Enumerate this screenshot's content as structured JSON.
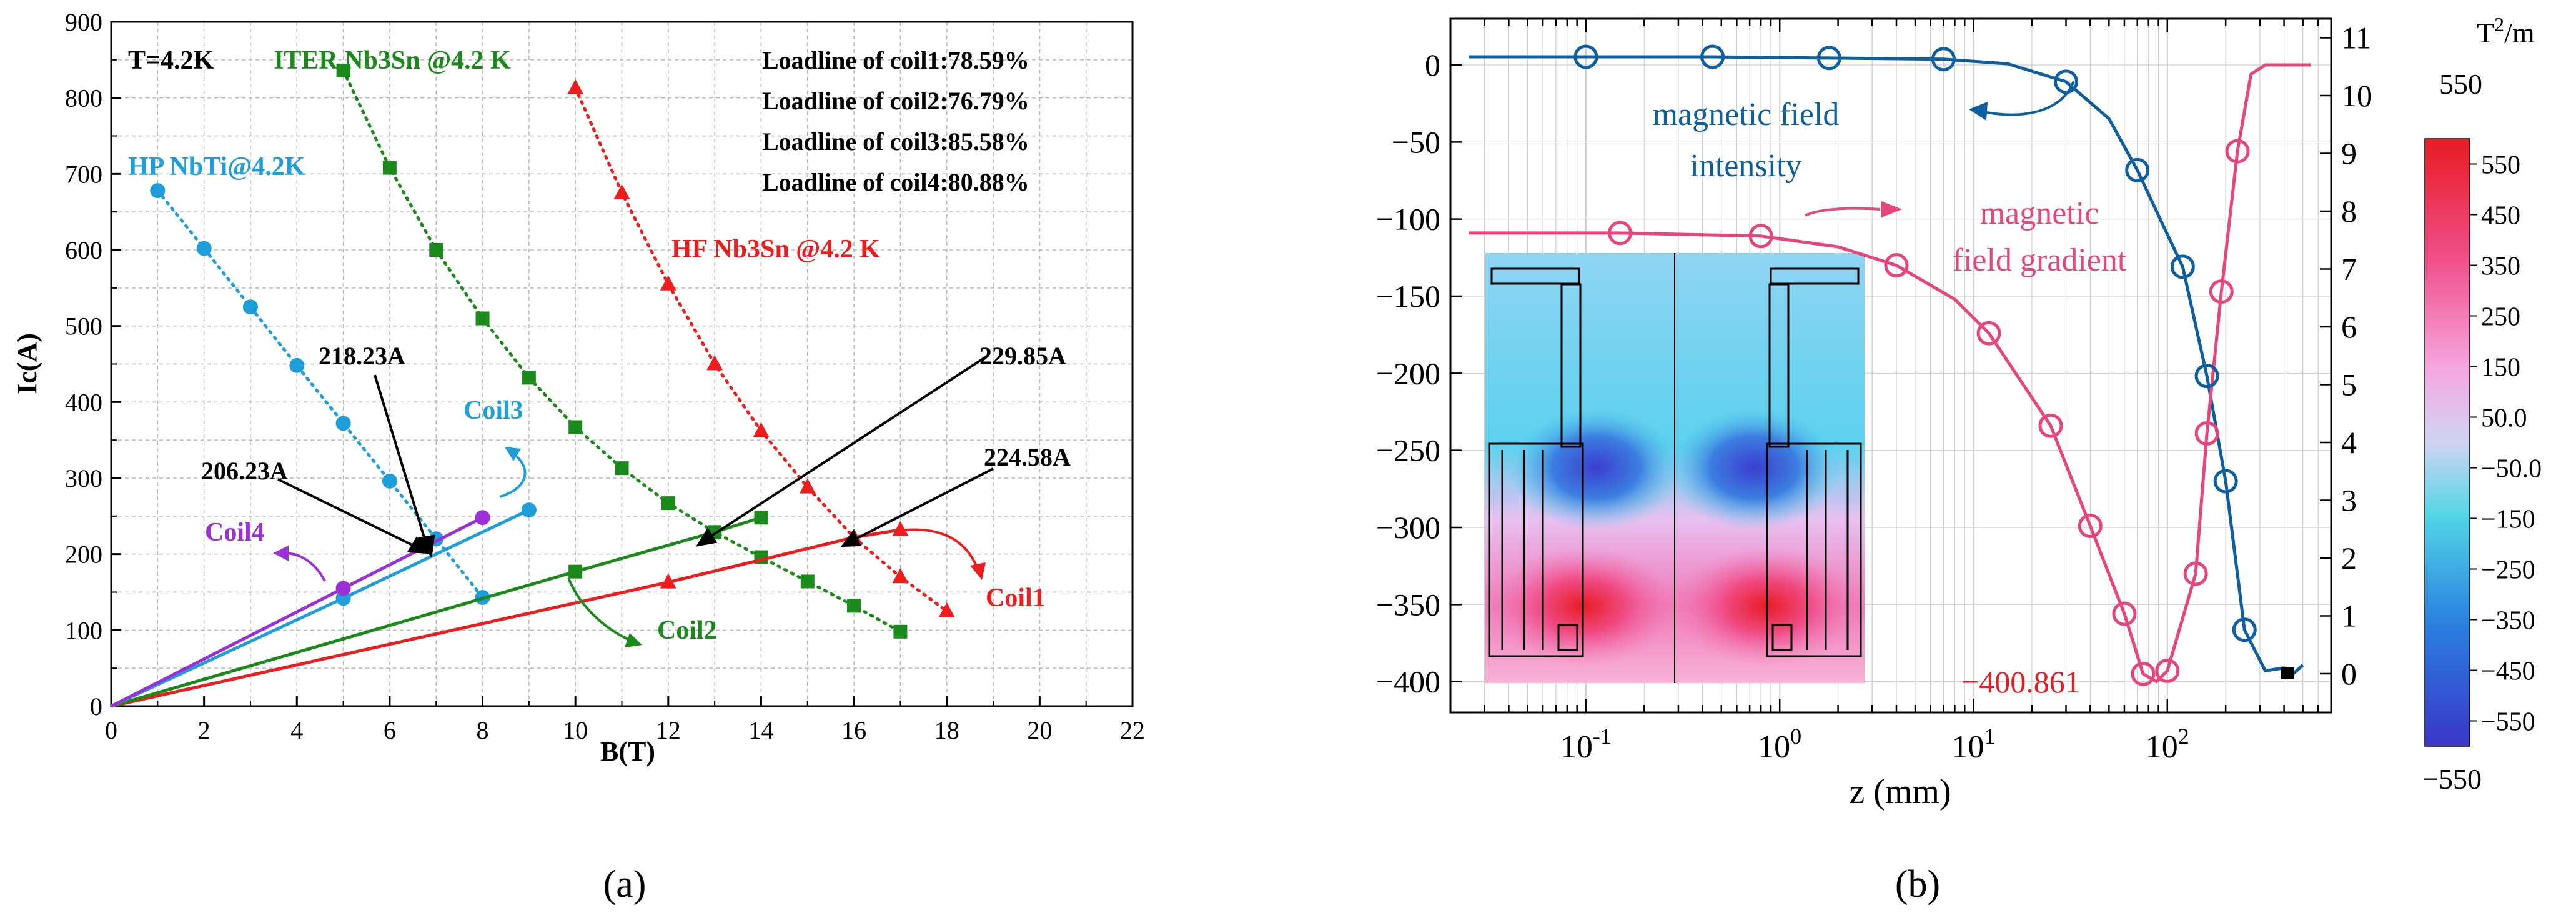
{
  "colors": {
    "ht_nbti": "#1e9fdc",
    "iter": "#1a8a1a",
    "hf": "#ee1c1c",
    "coil4": "#9b30d8",
    "field_blue": "#0e5fa0",
    "gradient_pink": "#e8457e",
    "annotation": "#000000"
  },
  "panel_a_caption": "(a)",
  "panel_b_caption": "(b)",
  "chart_data": [
    {
      "type": "line",
      "panel": "a",
      "title": "",
      "xlabel": "B(T)",
      "ylabel": "Ic(A)",
      "xlim": [
        0,
        22
      ],
      "ylim": [
        0,
        900
      ],
      "xticks": [
        "0",
        "2",
        "4",
        "6",
        "8",
        "10",
        "12",
        "14",
        "16",
        "18",
        "20",
        "22"
      ],
      "yticks": [
        "0",
        "100",
        "200",
        "300",
        "400",
        "500",
        "600",
        "700",
        "800",
        "900"
      ],
      "grid": true,
      "legend_text": {
        "temp": "T=4.2K",
        "loadline1": "Loadline of coil1:78.59%",
        "loadline2": "Loadline of coil2:76.79%",
        "loadline3": "Loadline of coil3:85.58%",
        "loadline4": "Loadline of coil4:80.88%"
      },
      "series_labels": {
        "hp": "HP NbTi@4.2K",
        "iter": "ITER Nb3Sn @4.2 K",
        "hf": "HF Nb3Sn @4.2 K"
      },
      "critical_curves": [
        {
          "name": "HP NbTi@4.2K",
          "color_key": "ht_nbti",
          "marker": "circle",
          "x": [
            1,
            2,
            3,
            4,
            5,
            6,
            7,
            8
          ],
          "y": [
            678,
            602,
            525,
            448,
            372,
            296,
            220,
            143
          ]
        },
        {
          "name": "ITER Nb3Sn @4.2 K",
          "color_key": "iter",
          "marker": "square",
          "x": [
            5,
            6,
            7,
            8,
            9,
            10,
            11,
            12,
            13,
            14,
            15,
            16,
            17
          ],
          "y": [
            836,
            708,
            600,
            510,
            432,
            367,
            313,
            267,
            229,
            196,
            164,
            132,
            98
          ]
        },
        {
          "name": "HF Nb3Sn @4.2 K",
          "color_key": "hf",
          "marker": "triangle",
          "x": [
            10,
            11,
            12,
            13,
            14,
            15,
            16,
            17,
            18
          ],
          "y": [
            813,
            675,
            555,
            450,
            362,
            288,
            222,
            170,
            125
          ]
        }
      ],
      "loadlines": [
        {
          "name": "Coil1",
          "color_key": "hf",
          "marker": "triangle",
          "x": [
            0,
            12,
            16,
            17
          ],
          "y": [
            0,
            163,
            222,
            232
          ]
        },
        {
          "name": "Coil2",
          "color_key": "iter",
          "marker": "square",
          "x": [
            0,
            10,
            13,
            14
          ],
          "y": [
            0,
            177,
            229,
            248
          ]
        },
        {
          "name": "Coil3",
          "color_key": "ht_nbti",
          "marker": "circle",
          "x": [
            0,
            5,
            9
          ],
          "y": [
            0,
            142,
            258
          ]
        },
        {
          "name": "Coil4",
          "color_key": "coil4",
          "marker": "circle",
          "x": [
            0,
            5,
            8
          ],
          "y": [
            0,
            155,
            248
          ]
        }
      ],
      "coil_labels": {
        "coil1": "Coil1",
        "coil2": "Coil2",
        "coil3": "Coil3",
        "coil4": "Coil4"
      },
      "annotations": {
        "a1": "218.23A",
        "a2": "206.23A",
        "a3": "229.85A",
        "a4": "224.58A"
      }
    },
    {
      "type": "line",
      "panel": "b",
      "xlabel": "z (mm)",
      "xscale": "log",
      "xlim": [
        0.02,
        700
      ],
      "xtick_labels": [
        "10",
        "-1",
        "10",
        "0",
        "10",
        "1",
        "10",
        "2"
      ],
      "left_ylim": [
        -420,
        30
      ],
      "left_yticks": [
        "0",
        "−50",
        "−100",
        "−150",
        "−200",
        "−250",
        "−300",
        "−350",
        "−400"
      ],
      "right_ylim": [
        -0.67,
        11.33
      ],
      "right_yticks": [
        "0",
        "1",
        "2",
        "3",
        "4",
        "5",
        "6",
        "7",
        "8",
        "9",
        "10",
        "11"
      ],
      "series": [
        {
          "name": "magnetic field intensity",
          "color_key": "field_blue",
          "axis": "right",
          "x": [
            0.1,
            0.45,
            1.8,
            7,
            30,
            70,
            120,
            160,
            200,
            250
          ],
          "y": [
            10.67,
            10.67,
            10.65,
            10.63,
            10.24,
            8.71,
            7.04,
            5.15,
            3.33,
            0.76
          ]
        },
        {
          "name": "magnetic field gradient",
          "color_key": "gradient_pink",
          "axis": "left",
          "x": [
            0.15,
            0.8,
            4,
            12,
            25,
            40,
            60,
            75,
            100,
            140,
            160,
            190,
            230
          ],
          "y": [
            -109,
            -111,
            -130,
            -174,
            -234,
            -299,
            -356,
            -395,
            -393,
            -330,
            -239,
            -147,
            -56
          ]
        }
      ],
      "label_intensity_line1": "magnetic field",
      "label_intensity_line2": "intensity",
      "label_gradient_line1": "magnetic",
      "label_gradient_line2": "field gradient",
      "min_label": "−400.861",
      "colorbar": {
        "unit": "T",
        "unit_exp": "2",
        "unit_suffix": "/m",
        "top_label": "550",
        "bottom_label": "−550",
        "ticks": [
          "550",
          "450",
          "350",
          "250",
          "150",
          "50.0",
          "−50.0",
          "−150",
          "−250",
          "−350",
          "−450",
          "−550"
        ]
      }
    }
  ]
}
